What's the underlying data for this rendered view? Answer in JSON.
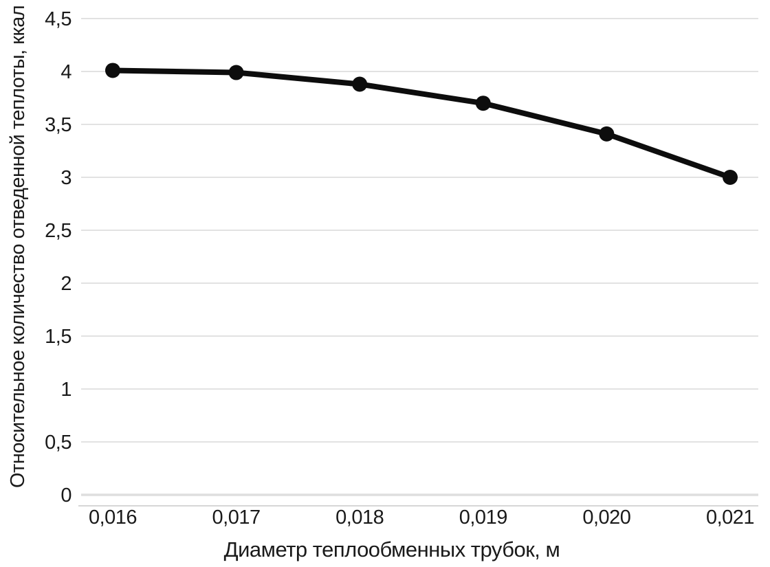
{
  "chart_data": {
    "type": "line",
    "title": "",
    "xlabel": "Диаметр теплообменных трубок, м",
    "ylabel": "Относительное количество отведенной теплоты, ккал",
    "categories": [
      "0,016",
      "0,017",
      "0,018",
      "0,019",
      "0,020",
      "0,021"
    ],
    "x": [
      0.016,
      0.017,
      0.018,
      0.019,
      0.02,
      0.021
    ],
    "values": [
      4.01,
      3.99,
      3.88,
      3.7,
      3.41,
      3.0
    ],
    "ylim": [
      0,
      4.5
    ],
    "ytick_step": 0.5,
    "ytick_labels": [
      "0",
      "0,5",
      "1",
      "1,5",
      "2",
      "2,5",
      "3",
      "3,5",
      "4",
      "4,5"
    ],
    "grid": "horizontal",
    "legend": "none",
    "decimal_separator": ",",
    "colors": {
      "line": "#0d0d0d",
      "marker": "#0d0d0d",
      "grid": "#e2e2e2",
      "zero_gridline": "#dedede",
      "axis_line": "#c9c9c9",
      "text": "#1a1a1a",
      "background": "#ffffff"
    }
  }
}
